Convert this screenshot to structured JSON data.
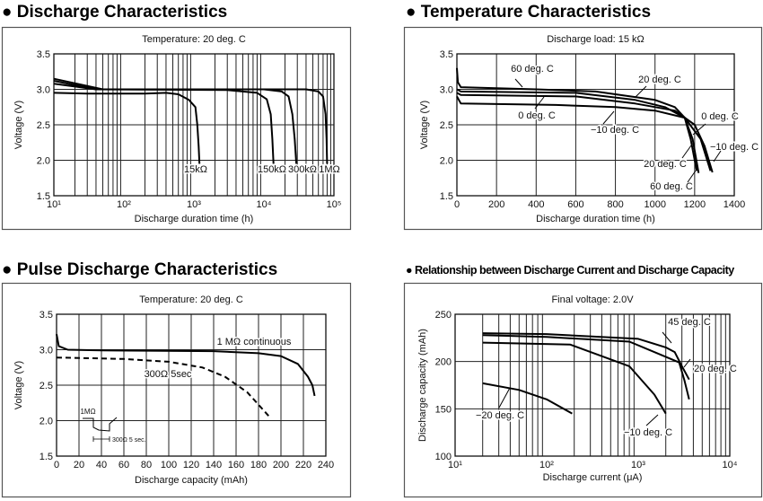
{
  "headings": [
    "● Discharge Characteristics",
    "● Temperature Characteristics",
    "● Pulse Discharge Characteristics",
    "● Relationship between Discharge Current and Discharge Capacity"
  ],
  "chart_data": [
    {
      "type": "line",
      "title": "Discharge Characteristics",
      "subtitle": "Temperature: 20 deg. C",
      "xlabel": "Discharge duration time (h)",
      "ylabel": "Voltage (V)",
      "xscale": "log",
      "xlim": [
        10,
        100000
      ],
      "ylim": [
        1.5,
        3.5
      ],
      "xticks": [
        10,
        100,
        1000,
        10000,
        100000
      ],
      "xtick_labels": [
        "10¹",
        "10²",
        "10³",
        "10⁴",
        "10⁵"
      ],
      "yticks": [
        1.5,
        2.0,
        2.5,
        3.0,
        3.5
      ],
      "ytick_labels": [
        "1.5",
        "2.0",
        "2.5",
        "3.0",
        "3.5"
      ],
      "grid": true,
      "series": [
        {
          "name": "15kΩ",
          "x": [
            10,
            30,
            200,
            400,
            600,
            850,
            1050,
            1120,
            1170,
            1200
          ],
          "y": [
            2.95,
            2.94,
            2.94,
            2.95,
            2.93,
            2.85,
            2.75,
            2.5,
            2.2,
            1.95
          ]
        },
        {
          "name": "150kΩ",
          "x": [
            10,
            40,
            3000,
            8000,
            11000,
            12500,
            13200,
            13700
          ],
          "y": [
            3.08,
            3.0,
            2.99,
            2.95,
            2.86,
            2.65,
            2.3,
            1.95
          ]
        },
        {
          "name": "300kΩ",
          "x": [
            10,
            40,
            10000,
            18000,
            22500,
            25500,
            27500,
            29000
          ],
          "y": [
            3.12,
            3.0,
            3.0,
            2.97,
            2.9,
            2.65,
            2.3,
            1.95
          ]
        },
        {
          "name": "1MΩ",
          "x": [
            10,
            50,
            40000,
            60000,
            70000,
            76000,
            78500,
            80000
          ],
          "y": [
            3.15,
            3.0,
            3.0,
            2.97,
            2.9,
            2.65,
            2.3,
            1.95
          ]
        }
      ]
    },
    {
      "type": "line",
      "title": "Temperature Characteristics",
      "subtitle": "Discharge load: 15 kΩ",
      "xlabel": "Discharge duration time (h)",
      "ylabel": "Voltage (V)",
      "xlim": [
        0,
        1400
      ],
      "ylim": [
        1.5,
        3.5
      ],
      "xticks": [
        0,
        200,
        400,
        600,
        800,
        1000,
        1200,
        1400
      ],
      "xtick_labels": [
        "0",
        "200",
        "400",
        "600",
        "800",
        "1000",
        "1200",
        "1400"
      ],
      "yticks": [
        1.5,
        2.0,
        2.5,
        3.0,
        3.5
      ],
      "ytick_labels": [
        "1.5",
        "2.0",
        "2.5",
        "3.0",
        "3.5"
      ],
      "grid": true,
      "series": [
        {
          "name": "60 deg. C",
          "x": [
            0,
            5,
            20,
            400,
            700,
            1000,
            1100,
            1150,
            1180,
            1200,
            1210
          ],
          "y": [
            3.3,
            3.1,
            3.03,
            3.0,
            2.97,
            2.85,
            2.75,
            2.6,
            2.3,
            2.0,
            1.85
          ]
        },
        {
          "name": "20 deg. C",
          "x": [
            0,
            20,
            600,
            900,
            1050,
            1150,
            1190,
            1220
          ],
          "y": [
            3.0,
            2.97,
            2.95,
            2.85,
            2.75,
            2.6,
            2.3,
            1.82
          ]
        },
        {
          "name": "0 deg. C",
          "x": [
            0,
            20,
            600,
            900,
            1100,
            1200,
            1250,
            1290
          ],
          "y": [
            2.95,
            2.92,
            2.9,
            2.8,
            2.7,
            2.5,
            2.2,
            1.83
          ]
        },
        {
          "name": "−10 deg. C",
          "x": [
            0,
            20,
            500,
            800,
            1000,
            1150,
            1230,
            1280
          ],
          "y": [
            2.9,
            2.8,
            2.78,
            2.75,
            2.7,
            2.6,
            2.3,
            1.85
          ]
        }
      ],
      "annotations": [
        "60 deg. C",
        "20 deg. C",
        "0 deg. C",
        "−10 deg. C",
        "0 deg. C",
        "−10 deg. C",
        "20 deg. C",
        "60 deg. C"
      ]
    },
    {
      "type": "line",
      "title": "Pulse Discharge Characteristics",
      "subtitle": "Temperature: 20 deg. C",
      "xlabel": "Discharge capacity (mAh)",
      "ylabel": "Voltage (V)",
      "xlim": [
        0,
        240
      ],
      "ylim": [
        1.5,
        3.5
      ],
      "xticks": [
        0,
        20,
        40,
        60,
        80,
        100,
        120,
        140,
        160,
        180,
        200,
        220,
        240
      ],
      "xtick_labels": [
        "0",
        "20",
        "40",
        "60",
        "80",
        "100",
        "120",
        "140",
        "160",
        "180",
        "200",
        "220",
        "240"
      ],
      "yticks": [
        1.5,
        2.0,
        2.5,
        3.0,
        3.5
      ],
      "ytick_labels": [
        "1.5",
        "2.0",
        "2.5",
        "3.0",
        "3.5"
      ],
      "grid": true,
      "series": [
        {
          "name": "1 MΩ continuous",
          "style": "solid",
          "x": [
            0,
            2,
            10,
            40,
            140,
            180,
            200,
            215,
            224,
            228,
            230
          ],
          "y": [
            3.22,
            3.05,
            3.0,
            2.99,
            2.98,
            2.95,
            2.91,
            2.8,
            2.62,
            2.5,
            2.35
          ]
        },
        {
          "name": "300Ω 5sec",
          "style": "dashed",
          "x": [
            0,
            60,
            100,
            130,
            150,
            170,
            190
          ],
          "y": [
            2.89,
            2.87,
            2.83,
            2.75,
            2.62,
            2.4,
            2.05
          ]
        }
      ],
      "inset": {
        "high_label": "1MΩ",
        "pulse_label": "300Ω 5 sec."
      }
    },
    {
      "type": "line",
      "title": "Relationship between Discharge Current and Discharge Capacity",
      "subtitle": "Final voltage: 2.0V",
      "xlabel": "Discharge current (μA)",
      "ylabel": "Discharge capacity (mAh)",
      "xscale": "log",
      "xlim": [
        10,
        10000
      ],
      "ylim": [
        100,
        250
      ],
      "xticks": [
        10,
        100,
        1000,
        10000
      ],
      "xtick_labels": [
        "10¹",
        "10²",
        "10³",
        "10⁴"
      ],
      "yticks": [
        100,
        150,
        200,
        250
      ],
      "ytick_labels": [
        "100",
        "150",
        "200",
        "250"
      ],
      "grid": true,
      "series": [
        {
          "name": "45 deg. C",
          "x": [
            20,
            100,
            1000,
            2000,
            2500,
            3000,
            3600
          ],
          "y": [
            230,
            229,
            224,
            215,
            210,
            195,
            181
          ]
        },
        {
          "name": "20 deg. C",
          "x": [
            20,
            100,
            800,
            2000,
            2800,
            3200,
            3600
          ],
          "y": [
            228,
            226,
            221,
            205,
            199,
            180,
            160
          ]
        },
        {
          "name": "−10 deg. C",
          "x": [
            20,
            180,
            800,
            1500,
            2000
          ],
          "y": [
            220,
            218,
            195,
            165,
            145
          ]
        },
        {
          "name": "−20 deg. C",
          "x": [
            20,
            50,
            100,
            190
          ],
          "y": [
            177,
            170,
            160,
            145
          ]
        }
      ]
    }
  ]
}
